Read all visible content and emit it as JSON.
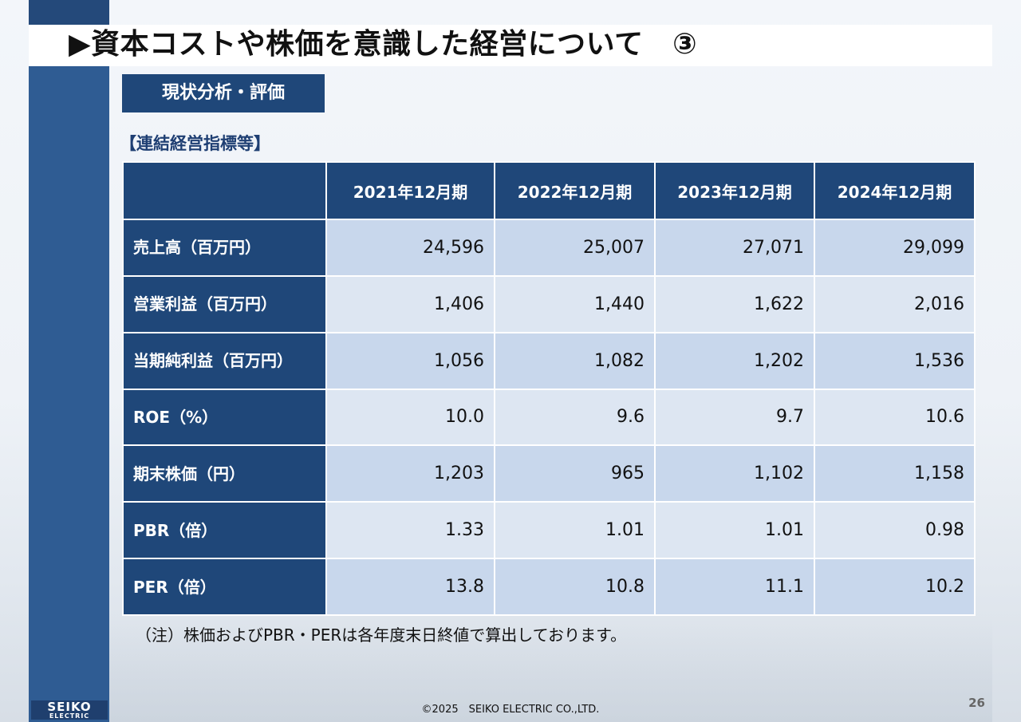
{
  "slide": {
    "title": "▶資本コストや株価を意識した経営について　③",
    "status_label": "現状分析・評価",
    "section_label": "【連結経営指標等】",
    "note": "（注）株価およびPBR・PERは各年度末日終値で算出しております。",
    "copyright": "©2025　SEIKO ELECTRIC CO.,LTD.",
    "page_number": "26",
    "logo": {
      "line1": "SEIKO",
      "line2": "ELECTRIC"
    }
  },
  "table": {
    "columns": [
      "",
      "2021年12月期",
      "2022年12月期",
      "2023年12月期",
      "2024年12月期"
    ],
    "rows": [
      {
        "label": "売上高（百万円）",
        "values": [
          "24,596",
          "25,007",
          "27,071",
          "29,099"
        ]
      },
      {
        "label": "営業利益（百万円）",
        "values": [
          "1,406",
          "1,440",
          "1,622",
          "2,016"
        ]
      },
      {
        "label": "当期純利益（百万円）",
        "values": [
          "1,056",
          "1,082",
          "1,202",
          "1,536"
        ]
      },
      {
        "label": "ROE（%）",
        "values": [
          "10.0",
          "9.6",
          "9.7",
          "10.6"
        ]
      },
      {
        "label": "期末株価（円）",
        "values": [
          "1,203",
          "965",
          "1,102",
          "1,158"
        ]
      },
      {
        "label": "PBR（倍）",
        "values": [
          "1.33",
          "1.01",
          "1.01",
          "0.98"
        ]
      },
      {
        "label": "PER（倍）",
        "values": [
          "13.8",
          "10.8",
          "11.1",
          "10.2"
        ]
      }
    ]
  },
  "colors": {
    "navy": "#1f4779",
    "sidebar": "#2f5c93",
    "row_light": "#dde6f2",
    "row_mid": "#c8d7ec",
    "section_text": "#1f3f73"
  }
}
